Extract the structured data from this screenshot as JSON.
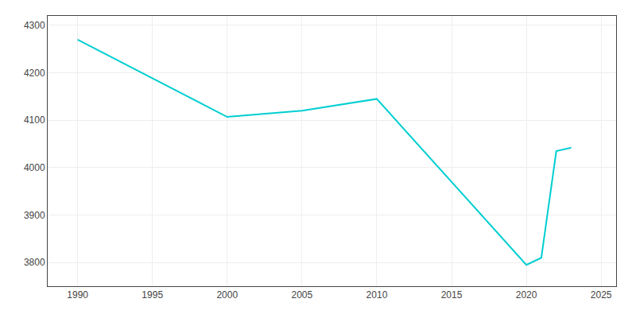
{
  "chart_data": {
    "type": "line",
    "x": [
      1990,
      2000,
      2005,
      2010,
      2020,
      2021,
      2022,
      2023
    ],
    "values": [
      4270,
      4107,
      4120,
      4145,
      3795,
      3810,
      4035,
      4042
    ],
    "color": "#00CED1",
    "xlim": [
      1988,
      2026
    ],
    "ylim": [
      3750,
      4320
    ],
    "xticks": [
      1990,
      1995,
      2000,
      2005,
      2010,
      2015,
      2020,
      2025
    ],
    "yticks": [
      3800,
      3900,
      4000,
      4100,
      4200,
      4300
    ],
    "grid": true
  }
}
